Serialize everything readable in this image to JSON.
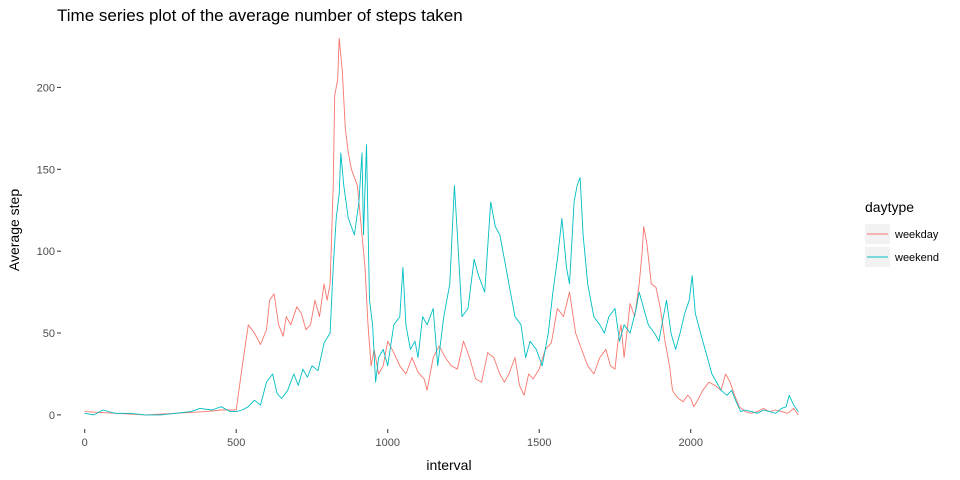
{
  "chart_data": {
    "type": "line",
    "title": "Time series plot of the average number of steps taken",
    "xlabel": "interval",
    "ylabel": "Average step",
    "xlim": [
      -75,
      2430
    ],
    "ylim": [
      -8,
      232
    ],
    "x_ticks": [
      0,
      500,
      1000,
      1500,
      2000
    ],
    "y_ticks": [
      0,
      50,
      100,
      150,
      200
    ],
    "grid": false,
    "legend": {
      "title": "daytype",
      "position": "right"
    },
    "series": [
      {
        "name": "weekday",
        "color": "#F8766D",
        "points": [
          [
            0,
            2
          ],
          [
            100,
            1
          ],
          [
            200,
            0
          ],
          [
            300,
            1
          ],
          [
            400,
            2
          ],
          [
            450,
            3
          ],
          [
            500,
            3
          ],
          [
            520,
            30
          ],
          [
            540,
            55
          ],
          [
            560,
            50
          ],
          [
            580,
            43
          ],
          [
            600,
            52
          ],
          [
            610,
            70
          ],
          [
            625,
            74
          ],
          [
            640,
            55
          ],
          [
            655,
            48
          ],
          [
            665,
            60
          ],
          [
            680,
            55
          ],
          [
            700,
            66
          ],
          [
            715,
            62
          ],
          [
            730,
            52
          ],
          [
            745,
            55
          ],
          [
            760,
            70
          ],
          [
            775,
            60
          ],
          [
            790,
            80
          ],
          [
            800,
            70
          ],
          [
            810,
            80
          ],
          [
            820,
            140
          ],
          [
            825,
            195
          ],
          [
            835,
            205
          ],
          [
            840,
            230
          ],
          [
            850,
            210
          ],
          [
            860,
            175
          ],
          [
            870,
            160
          ],
          [
            880,
            150
          ],
          [
            900,
            140
          ],
          [
            915,
            110
          ],
          [
            925,
            90
          ],
          [
            935,
            55
          ],
          [
            945,
            30
          ],
          [
            955,
            40
          ],
          [
            970,
            25
          ],
          [
            985,
            30
          ],
          [
            1000,
            45
          ],
          [
            1020,
            38
          ],
          [
            1040,
            30
          ],
          [
            1060,
            25
          ],
          [
            1080,
            35
          ],
          [
            1100,
            26
          ],
          [
            1120,
            22
          ],
          [
            1130,
            15
          ],
          [
            1150,
            35
          ],
          [
            1170,
            42
          ],
          [
            1190,
            35
          ],
          [
            1210,
            30
          ],
          [
            1230,
            28
          ],
          [
            1250,
            45
          ],
          [
            1270,
            35
          ],
          [
            1290,
            22
          ],
          [
            1310,
            20
          ],
          [
            1330,
            38
          ],
          [
            1350,
            35
          ],
          [
            1370,
            25
          ],
          [
            1385,
            20
          ],
          [
            1400,
            25
          ],
          [
            1420,
            35
          ],
          [
            1435,
            18
          ],
          [
            1450,
            12
          ],
          [
            1465,
            25
          ],
          [
            1480,
            22
          ],
          [
            1500,
            28
          ],
          [
            1520,
            40
          ],
          [
            1540,
            44
          ],
          [
            1560,
            65
          ],
          [
            1580,
            60
          ],
          [
            1600,
            75
          ],
          [
            1620,
            50
          ],
          [
            1640,
            40
          ],
          [
            1660,
            30
          ],
          [
            1680,
            25
          ],
          [
            1700,
            35
          ],
          [
            1720,
            40
          ],
          [
            1735,
            30
          ],
          [
            1750,
            28
          ],
          [
            1760,
            45
          ],
          [
            1770,
            55
          ],
          [
            1780,
            35
          ],
          [
            1800,
            68
          ],
          [
            1815,
            60
          ],
          [
            1830,
            80
          ],
          [
            1840,
            100
          ],
          [
            1845,
            115
          ],
          [
            1855,
            105
          ],
          [
            1870,
            80
          ],
          [
            1885,
            78
          ],
          [
            1900,
            65
          ],
          [
            1915,
            45
          ],
          [
            1930,
            30
          ],
          [
            1940,
            15
          ],
          [
            1950,
            12
          ],
          [
            1960,
            10
          ],
          [
            1975,
            8
          ],
          [
            1990,
            12
          ],
          [
            2000,
            10
          ],
          [
            2010,
            5
          ],
          [
            2020,
            8
          ],
          [
            2040,
            15
          ],
          [
            2060,
            20
          ],
          [
            2080,
            18
          ],
          [
            2100,
            15
          ],
          [
            2115,
            25
          ],
          [
            2130,
            20
          ],
          [
            2145,
            12
          ],
          [
            2160,
            5
          ],
          [
            2180,
            2
          ],
          [
            2200,
            1
          ],
          [
            2220,
            2
          ],
          [
            2240,
            4
          ],
          [
            2260,
            2
          ],
          [
            2280,
            3
          ],
          [
            2300,
            2
          ],
          [
            2320,
            1
          ],
          [
            2340,
            4
          ],
          [
            2355,
            0
          ]
        ]
      },
      {
        "name": "weekend",
        "color": "#00BFC4",
        "points": [
          [
            0,
            1
          ],
          [
            30,
            0
          ],
          [
            60,
            3
          ],
          [
            100,
            1
          ],
          [
            150,
            1
          ],
          [
            200,
            0
          ],
          [
            250,
            0
          ],
          [
            300,
            1
          ],
          [
            350,
            2
          ],
          [
            380,
            4
          ],
          [
            420,
            3
          ],
          [
            450,
            5
          ],
          [
            480,
            2
          ],
          [
            500,
            2
          ],
          [
            520,
            3
          ],
          [
            540,
            5
          ],
          [
            560,
            9
          ],
          [
            580,
            6
          ],
          [
            600,
            20
          ],
          [
            620,
            25
          ],
          [
            635,
            13
          ],
          [
            650,
            10
          ],
          [
            670,
            15
          ],
          [
            690,
            25
          ],
          [
            705,
            18
          ],
          [
            720,
            28
          ],
          [
            735,
            23
          ],
          [
            750,
            30
          ],
          [
            770,
            27
          ],
          [
            790,
            44
          ],
          [
            810,
            50
          ],
          [
            820,
            90
          ],
          [
            830,
            120
          ],
          [
            840,
            135
          ],
          [
            845,
            160
          ],
          [
            855,
            140
          ],
          [
            870,
            120
          ],
          [
            890,
            110
          ],
          [
            905,
            130
          ],
          [
            915,
            160
          ],
          [
            920,
            110
          ],
          [
            930,
            165
          ],
          [
            940,
            70
          ],
          [
            950,
            55
          ],
          [
            960,
            20
          ],
          [
            970,
            35
          ],
          [
            985,
            40
          ],
          [
            1000,
            30
          ],
          [
            1020,
            55
          ],
          [
            1040,
            60
          ],
          [
            1050,
            90
          ],
          [
            1060,
            55
          ],
          [
            1075,
            40
          ],
          [
            1090,
            45
          ],
          [
            1100,
            35
          ],
          [
            1115,
            60
          ],
          [
            1130,
            55
          ],
          [
            1150,
            65
          ],
          [
            1165,
            30
          ],
          [
            1185,
            60
          ],
          [
            1205,
            80
          ],
          [
            1220,
            140
          ],
          [
            1230,
            110
          ],
          [
            1245,
            60
          ],
          [
            1265,
            65
          ],
          [
            1285,
            95
          ],
          [
            1300,
            85
          ],
          [
            1320,
            75
          ],
          [
            1340,
            130
          ],
          [
            1355,
            115
          ],
          [
            1370,
            110
          ],
          [
            1385,
            95
          ],
          [
            1400,
            80
          ],
          [
            1420,
            60
          ],
          [
            1440,
            55
          ],
          [
            1455,
            35
          ],
          [
            1470,
            45
          ],
          [
            1490,
            40
          ],
          [
            1510,
            30
          ],
          [
            1530,
            50
          ],
          [
            1545,
            75
          ],
          [
            1560,
            95
          ],
          [
            1575,
            120
          ],
          [
            1590,
            90
          ],
          [
            1600,
            80
          ],
          [
            1615,
            130
          ],
          [
            1625,
            140
          ],
          [
            1635,
            145
          ],
          [
            1645,
            110
          ],
          [
            1660,
            80
          ],
          [
            1680,
            60
          ],
          [
            1700,
            55
          ],
          [
            1715,
            50
          ],
          [
            1730,
            60
          ],
          [
            1750,
            65
          ],
          [
            1765,
            45
          ],
          [
            1780,
            55
          ],
          [
            1800,
            50
          ],
          [
            1820,
            65
          ],
          [
            1830,
            75
          ],
          [
            1845,
            65
          ],
          [
            1860,
            55
          ],
          [
            1880,
            50
          ],
          [
            1895,
            45
          ],
          [
            1910,
            60
          ],
          [
            1920,
            70
          ],
          [
            1935,
            50
          ],
          [
            1950,
            40
          ],
          [
            1965,
            50
          ],
          [
            1980,
            62
          ],
          [
            1995,
            70
          ],
          [
            2005,
            85
          ],
          [
            2015,
            62
          ],
          [
            2025,
            55
          ],
          [
            2040,
            45
          ],
          [
            2055,
            35
          ],
          [
            2070,
            25
          ],
          [
            2085,
            20
          ],
          [
            2100,
            15
          ],
          [
            2120,
            12
          ],
          [
            2135,
            15
          ],
          [
            2150,
            8
          ],
          [
            2165,
            2
          ],
          [
            2180,
            3
          ],
          [
            2200,
            2
          ],
          [
            2220,
            1
          ],
          [
            2240,
            3
          ],
          [
            2260,
            2
          ],
          [
            2280,
            1
          ],
          [
            2300,
            4
          ],
          [
            2315,
            5
          ],
          [
            2325,
            12
          ],
          [
            2340,
            6
          ],
          [
            2355,
            2
          ]
        ]
      }
    ]
  }
}
